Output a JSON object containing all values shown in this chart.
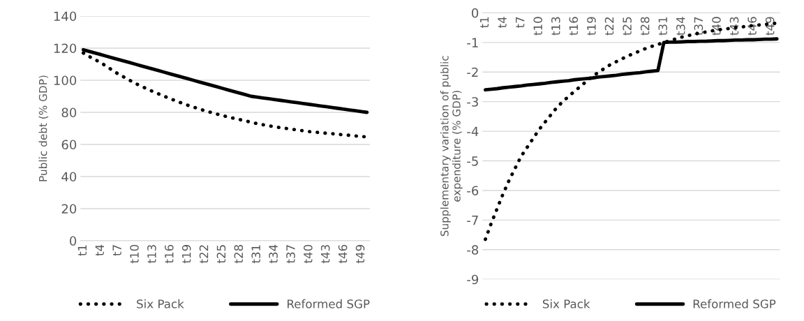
{
  "chart_data": [
    {
      "type": "line",
      "ylabel": "Public debt (% GDP)",
      "categories": [
        "t1",
        null,
        null,
        "t4",
        null,
        null,
        "t7",
        null,
        null,
        "t10",
        null,
        null,
        "t13",
        null,
        null,
        "t16",
        null,
        null,
        "t19",
        null,
        null,
        "t22",
        null,
        null,
        "t25",
        null,
        null,
        "t28",
        null,
        null,
        "t31",
        null,
        null,
        "t34",
        null,
        null,
        "t37",
        null,
        null,
        "t40",
        null,
        null,
        "t43",
        null,
        null,
        "t46",
        null,
        null,
        "t49",
        null
      ],
      "series": [
        {
          "name": "Six Pack",
          "color": "#000000",
          "line_style": "dotted",
          "values": [
            117,
            114.8,
            112.9,
            111,
            108.7,
            106.3,
            104,
            102,
            100,
            98,
            96.3,
            94.7,
            93,
            91.5,
            90,
            88.5,
            87.2,
            85.8,
            84.5,
            83.3,
            82.2,
            81,
            80,
            79,
            78,
            77.2,
            76.3,
            75.5,
            74.7,
            73.8,
            73,
            72.3,
            71.7,
            71,
            70.5,
            70,
            69.5,
            69,
            68.5,
            68,
            67.7,
            67.3,
            67,
            66.7,
            66.3,
            66,
            65.7,
            65.3,
            65,
            64.7
          ]
        },
        {
          "name": "Reformed SGP",
          "color": "#000000",
          "line_style": "solid",
          "values": [
            119,
            118,
            117,
            116,
            115,
            114,
            113,
            112,
            111,
            110,
            109,
            108,
            107,
            106,
            105,
            104,
            103,
            102,
            101,
            100,
            99,
            98,
            97,
            96,
            95,
            94,
            93,
            92,
            91,
            90,
            89.5,
            89,
            88.5,
            88,
            87.5,
            87,
            86.5,
            86,
            85.5,
            85,
            84.5,
            84,
            83.5,
            83,
            82.5,
            82,
            81.5,
            81,
            80.5,
            80
          ]
        }
      ],
      "ylim": [
        0,
        140
      ],
      "yticks": [
        0,
        20,
        40,
        60,
        80,
        100,
        120,
        140
      ],
      "grid": "y",
      "legend": "bottom",
      "marker": "none"
    },
    {
      "type": "line",
      "ylabel": "Supplementary variation of public expenditure (% GDP)",
      "categories": [
        "t1",
        null,
        null,
        "t4",
        null,
        null,
        "t7",
        null,
        null,
        "t10",
        null,
        null,
        "t13",
        null,
        null,
        "t16",
        null,
        null,
        "t19",
        null,
        null,
        "t22",
        null,
        null,
        "t25",
        null,
        null,
        "t28",
        null,
        null,
        "t31",
        null,
        null,
        "t34",
        null,
        null,
        "t37",
        null,
        null,
        "t40",
        null,
        null,
        "t43",
        null,
        null,
        "t46",
        null,
        null,
        "t49",
        null
      ],
      "series": [
        {
          "name": "Six Pack",
          "color": "#000000",
          "line_style": "dotted",
          "values": [
            -7.65,
            -7.1,
            -6.6,
            -6.1,
            -5.65,
            -5.25,
            -4.85,
            -4.55,
            -4.25,
            -3.95,
            -3.7,
            -3.45,
            -3.2,
            -3.0,
            -2.82,
            -2.65,
            -2.48,
            -2.31,
            -2.15,
            -2.01,
            -1.88,
            -1.75,
            -1.65,
            -1.55,
            -1.45,
            -1.37,
            -1.28,
            -1.2,
            -1.13,
            -1.07,
            -1.0,
            -0.94,
            -0.88,
            -0.82,
            -0.77,
            -0.73,
            -0.68,
            -0.65,
            -0.61,
            -0.58,
            -0.55,
            -0.53,
            -0.5,
            -0.48,
            -0.45,
            -0.43,
            -0.41,
            -0.39,
            -0.37,
            -0.35
          ]
        },
        {
          "name": "Reformed SGP",
          "color": "#000000",
          "line_style": "solid",
          "values": [
            -2.6,
            -2.58,
            -2.56,
            -2.53,
            -2.51,
            -2.49,
            -2.47,
            -2.44,
            -2.42,
            -2.4,
            -2.38,
            -2.35,
            -2.33,
            -2.31,
            -2.29,
            -2.26,
            -2.24,
            -2.22,
            -2.2,
            -2.17,
            -2.15,
            -2.13,
            -2.11,
            -2.08,
            -2.06,
            -2.04,
            -2.02,
            -1.99,
            -1.97,
            -1.95,
            -1.0,
            -0.99,
            -0.99,
            -0.98,
            -0.97,
            -0.97,
            -0.96,
            -0.96,
            -0.95,
            -0.94,
            -0.94,
            -0.93,
            -0.92,
            -0.92,
            -0.91,
            -0.91,
            -0.9,
            -0.89,
            -0.89,
            -0.88
          ]
        }
      ],
      "ylim": [
        -9,
        0
      ],
      "yticks": [
        -9,
        -8,
        -7,
        -6,
        -5,
        -4,
        -3,
        -2,
        -1,
        0
      ],
      "grid": "y",
      "legend": "bottom",
      "marker": "none"
    }
  ]
}
